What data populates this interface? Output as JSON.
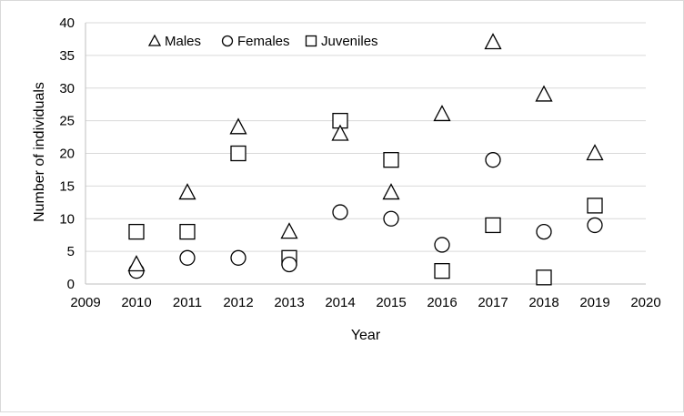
{
  "chart_data": {
    "type": "scatter",
    "title": "",
    "xlabel": "Year",
    "ylabel": "Number of individuals",
    "xlim": [
      2009,
      2020
    ],
    "ylim": [
      0,
      40
    ],
    "x_ticks": [
      2009,
      2010,
      2011,
      2012,
      2013,
      2014,
      2015,
      2016,
      2017,
      2018,
      2019,
      2020
    ],
    "y_ticks": [
      0,
      5,
      10,
      15,
      20,
      25,
      30,
      35,
      40
    ],
    "grid": "horizontal",
    "legend_position": "top",
    "series": [
      {
        "name": "Males",
        "marker": "triangle",
        "x": [
          2010,
          2011,
          2012,
          2013,
          2014,
          2015,
          2016,
          2017,
          2018,
          2019
        ],
        "values": [
          3,
          14,
          24,
          8,
          23,
          14,
          26,
          37,
          29,
          20
        ]
      },
      {
        "name": "Females",
        "marker": "circle",
        "x": [
          2010,
          2011,
          2012,
          2013,
          2014,
          2015,
          2016,
          2017,
          2018,
          2019
        ],
        "values": [
          2,
          4,
          4,
          3,
          11,
          10,
          6,
          19,
          8,
          9
        ]
      },
      {
        "name": "Juveniles",
        "marker": "square",
        "x": [
          2010,
          2011,
          2012,
          2013,
          2014,
          2015,
          2016,
          2017,
          2018,
          2019
        ],
        "values": [
          8,
          8,
          20,
          4,
          25,
          19,
          2,
          9,
          1,
          12
        ]
      }
    ],
    "colors": {
      "marker_stroke": "#000000",
      "marker_fill": "#ffffff",
      "gridline": "#d9d9d9",
      "axis": "#bfbfbf",
      "border": "#d9d9d9"
    }
  }
}
